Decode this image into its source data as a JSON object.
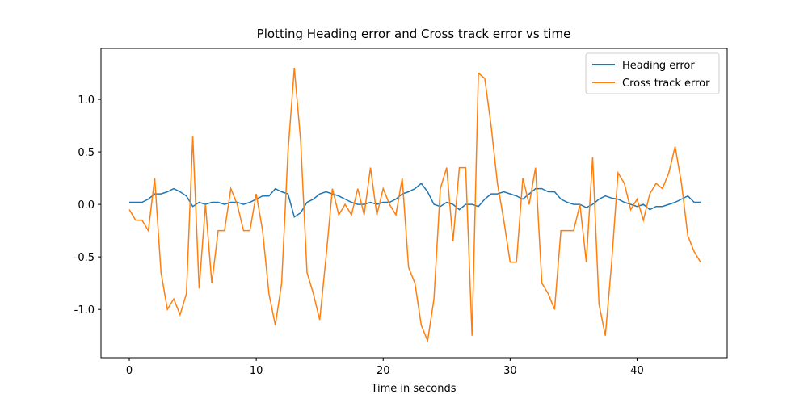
{
  "chart_data": {
    "type": "line",
    "title": "Plotting Heading error and Cross track error vs time",
    "x_label": "Time in seconds",
    "x": [
      0,
      0.5,
      1,
      1.5,
      2,
      2.5,
      3,
      3.5,
      4,
      4.5,
      5,
      5.5,
      6,
      6.5,
      7,
      7.5,
      8,
      8.5,
      9,
      9.5,
      10,
      10.5,
      11,
      11.5,
      12,
      12.5,
      13,
      13.5,
      14,
      14.5,
      15,
      15.5,
      16,
      16.5,
      17,
      17.5,
      18,
      18.5,
      19,
      19.5,
      20,
      20.5,
      21,
      21.5,
      22,
      22.5,
      23,
      23.5,
      24,
      24.5,
      25,
      25.5,
      26,
      26.5,
      27,
      27.5,
      28,
      28.5,
      29,
      29.5,
      30,
      30.5,
      31,
      31.5,
      32,
      32.5,
      33,
      33.5,
      34,
      34.5,
      35,
      35.5,
      36,
      36.5,
      37,
      37.5,
      38,
      38.5,
      39,
      39.5,
      40,
      40.5,
      41,
      41.5,
      42,
      42.5,
      43,
      43.5,
      44,
      44.5,
      45
    ],
    "series": [
      {
        "name": "Heading error",
        "color": "#1f77b4",
        "values": [
          0.02,
          0.02,
          0.02,
          0.05,
          0.1,
          0.1,
          0.12,
          0.15,
          0.12,
          0.08,
          -0.02,
          0.02,
          0.0,
          0.02,
          0.02,
          0.0,
          0.02,
          0.02,
          0.0,
          0.02,
          0.05,
          0.08,
          0.08,
          0.15,
          0.12,
          0.1,
          -0.12,
          -0.08,
          0.02,
          0.05,
          0.1,
          0.12,
          0.1,
          0.08,
          0.05,
          0.02,
          0.0,
          0.0,
          0.02,
          0.0,
          0.02,
          0.02,
          0.05,
          0.1,
          0.12,
          0.15,
          0.2,
          0.12,
          0.0,
          -0.02,
          0.02,
          0.0,
          -0.05,
          0.0,
          0.0,
          -0.02,
          0.05,
          0.1,
          0.1,
          0.12,
          0.1,
          0.08,
          0.05,
          0.1,
          0.15,
          0.15,
          0.12,
          0.12,
          0.05,
          0.02,
          0.0,
          0.0,
          -0.03,
          0.0,
          0.05,
          0.08,
          0.06,
          0.05,
          0.02,
          0.0,
          -0.02,
          0.0,
          -0.05,
          -0.02,
          -0.02,
          0.0,
          0.02,
          0.05,
          0.08,
          0.02,
          0.02
        ]
      },
      {
        "name": "Cross track error",
        "color": "#ff7f0e",
        "values": [
          -0.05,
          -0.15,
          -0.15,
          -0.25,
          0.25,
          -0.65,
          -1.0,
          -0.9,
          -1.05,
          -0.85,
          0.65,
          -0.8,
          0.0,
          -0.75,
          -0.25,
          -0.25,
          0.15,
          0.0,
          -0.25,
          -0.25,
          0.1,
          -0.25,
          -0.85,
          -1.15,
          -0.75,
          0.5,
          1.3,
          0.6,
          -0.65,
          -0.85,
          -1.1,
          -0.5,
          0.15,
          -0.1,
          0.0,
          -0.1,
          0.15,
          -0.1,
          0.35,
          -0.1,
          0.15,
          0.0,
          -0.1,
          0.25,
          -0.6,
          -0.75,
          -1.15,
          -1.3,
          -0.9,
          0.15,
          0.35,
          -0.35,
          0.35,
          0.35,
          -1.25,
          1.25,
          1.2,
          0.75,
          0.2,
          -0.15,
          -0.55,
          -0.55,
          0.25,
          0.0,
          0.35,
          -0.75,
          -0.85,
          -1.0,
          -0.25,
          -0.25,
          -0.25,
          0.0,
          -0.55,
          0.45,
          -0.95,
          -1.25,
          -0.55,
          0.3,
          0.2,
          -0.05,
          0.05,
          -0.15,
          0.1,
          0.2,
          0.15,
          0.3,
          0.55,
          0.2,
          -0.3,
          -0.45,
          -0.55
        ]
      }
    ],
    "xlim": [
      -2.23,
      47.1
    ],
    "xticks": [
      0,
      10,
      20,
      30,
      40
    ],
    "ylim": [
      -1.46,
      1.485
    ],
    "yticks": [
      {
        "value": -1,
        "label": "-1.0"
      },
      {
        "value": -0.5,
        "label": "-0.5"
      },
      {
        "value": 0,
        "label": "0.0"
      },
      {
        "value": 0.5,
        "label": "0.5"
      },
      {
        "value": 1,
        "label": "1.0"
      }
    ],
    "legend": "upper right",
    "grid": false
  }
}
